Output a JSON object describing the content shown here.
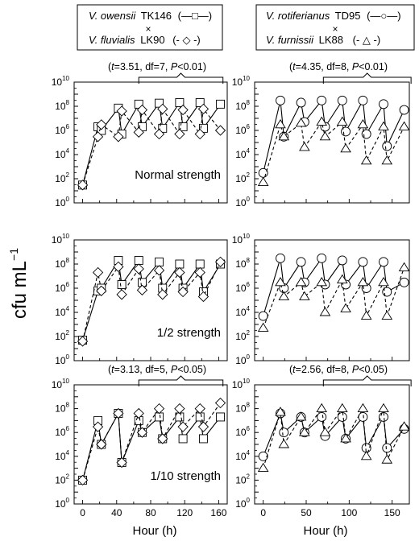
{
  "legend": {
    "left": {
      "a": {
        "species": "V. owensii",
        "strain": "TK146",
        "glyph": "(—□—)"
      },
      "cross": "×",
      "b": {
        "species": "V. fluvialis",
        "strain": "LK90",
        "glyph": "(- ◇ -)"
      }
    },
    "right": {
      "a": {
        "species": "V. rotiferianus",
        "strain": "TD95",
        "glyph": "(—○—)"
      },
      "cross": "×",
      "b": {
        "species": "V. furnissii",
        "strain": "LK88",
        "glyph": "(- △ -)"
      }
    }
  },
  "ylabel": "cfu mL",
  "ylabel_sup": "−1",
  "xlabel": "Hour (h)",
  "panel_labels": [
    "Normal strength",
    "1/2 strength",
    "1/10 strength"
  ],
  "chart_data": [
    {
      "type": "line",
      "row": 0,
      "col": 0,
      "yscale": "log",
      "xlim": [
        -10,
        170
      ],
      "ylim": [
        1,
        10000000000.0
      ],
      "xticks": [
        0,
        40,
        80,
        120,
        160
      ],
      "yticks_exp": [
        0,
        2,
        4,
        6,
        8,
        10
      ],
      "annotation": {
        "text": "(t=3.51, df=7, P<0.01)",
        "t": "3.51",
        "df": "7",
        "p": "<0.01",
        "bracket": [
          66,
          165
        ]
      },
      "panel_label": "Normal strength",
      "series": [
        {
          "name": "V. owensii TK146",
          "marker": "square",
          "line": "solid",
          "x": [
            0,
            18,
            22,
            42,
            46,
            66,
            70,
            90,
            94,
            114,
            118,
            138,
            142,
            162
          ],
          "y": [
            30,
            2000000,
            1000000,
            70000000,
            500000,
            150000000,
            2000000,
            180000000,
            1500000,
            200000000,
            2000000,
            200000000,
            1500000,
            150000000
          ]
        },
        {
          "name": "V. fluvialis LK90",
          "marker": "diamond",
          "line": "dashed",
          "x": [
            0,
            18,
            22,
            42,
            46,
            66,
            70,
            90,
            94,
            114,
            118,
            138,
            142,
            162
          ],
          "y": [
            30,
            300000,
            3000000,
            300000,
            40000000,
            700000,
            50000000,
            500000,
            60000000,
            500000,
            50000000,
            500000,
            60000000,
            1000000
          ]
        }
      ]
    },
    {
      "type": "line",
      "row": 0,
      "col": 1,
      "yscale": "log",
      "xlim": [
        -10,
        170
      ],
      "ylim": [
        1,
        10000000000.0
      ],
      "xticks": [
        0,
        50,
        100,
        150
      ],
      "yticks_exp": [
        0,
        2,
        4,
        6,
        8,
        10
      ],
      "annotation": {
        "text": "(t=4.35, df=8, P<0.01)",
        "t": "4.35",
        "df": "8",
        "p": "<0.01",
        "bracket": [
          70,
          172
        ]
      },
      "series": [
        {
          "name": "V. rotiferianus TD95",
          "marker": "circle",
          "line": "solid",
          "x": [
            0,
            20,
            24,
            44,
            48,
            68,
            72,
            92,
            96,
            116,
            120,
            140,
            144,
            164
          ],
          "y": [
            300,
            300000000,
            300000,
            200000000,
            5000000,
            300000000,
            2000000,
            300000000,
            800000,
            300000000,
            500000,
            150000000,
            50000,
            50000000
          ]
        },
        {
          "name": "V. furnissii LK88",
          "marker": "triangle",
          "line": "dashed",
          "x": [
            0,
            20,
            24,
            44,
            48,
            68,
            72,
            92,
            96,
            116,
            120,
            140,
            144,
            164
          ],
          "y": [
            50,
            3000000,
            300000,
            4000000,
            40000,
            5000000,
            300000,
            5000000,
            30000,
            3000000,
            3000,
            2000000,
            3000,
            2000000
          ]
        }
      ]
    },
    {
      "type": "line",
      "row": 1,
      "col": 0,
      "yscale": "log",
      "xlim": [
        -10,
        170
      ],
      "ylim": [
        1,
        10000000000.0
      ],
      "xticks": [
        0,
        40,
        80,
        120,
        160
      ],
      "yticks_exp": [
        0,
        2,
        4,
        6,
        8,
        10
      ],
      "panel_label": "1/2 strength",
      "series": [
        {
          "name": "V. owensii TK146",
          "marker": "square",
          "line": "solid",
          "x": [
            0,
            18,
            22,
            42,
            46,
            66,
            70,
            90,
            94,
            114,
            118,
            138,
            142,
            162
          ],
          "y": [
            50,
            600000,
            1000000,
            200000000,
            2000000,
            200000000,
            3000000,
            150000000,
            1000000,
            100000000,
            1000000,
            100000000,
            500000,
            100000000
          ]
        },
        {
          "name": "V. fluvialis LK90",
          "marker": "diamond",
          "line": "dashed",
          "x": [
            0,
            18,
            22,
            42,
            46,
            66,
            70,
            90,
            94,
            114,
            118,
            138,
            142,
            162
          ],
          "y": [
            40,
            20000000,
            600000,
            60000000,
            300000,
            40000000,
            700000,
            30000000,
            300000,
            20000000,
            500000,
            20000000,
            200000,
            150000000
          ]
        }
      ]
    },
    {
      "type": "line",
      "row": 1,
      "col": 1,
      "yscale": "log",
      "xlim": [
        -10,
        170
      ],
      "ylim": [
        1,
        10000000000.0
      ],
      "xticks": [
        0,
        50,
        100,
        150
      ],
      "yticks_exp": [
        0,
        2,
        4,
        6,
        8,
        10
      ],
      "series": [
        {
          "name": "V. rotiferianus TD95",
          "marker": "circle",
          "line": "solid",
          "x": [
            0,
            20,
            24,
            44,
            48,
            68,
            72,
            92,
            96,
            116,
            120,
            140,
            144,
            164
          ],
          "y": [
            5000,
            300000000,
            1000000,
            150000000,
            3000000,
            300000000,
            2000000,
            200000000,
            2000000,
            150000000,
            1000000,
            150000000,
            500000,
            3000000
          ]
        },
        {
          "name": "V. furnissii LK88",
          "marker": "triangle",
          "line": "dashed",
          "x": [
            0,
            20,
            24,
            44,
            48,
            68,
            72,
            92,
            96,
            116,
            120,
            140,
            144,
            164
          ],
          "y": [
            500,
            3000000,
            200000,
            3000000,
            200000,
            3000000,
            10000,
            5000000,
            20000,
            3000000,
            5000,
            3000000,
            5000,
            50000000
          ]
        }
      ]
    },
    {
      "type": "line",
      "row": 2,
      "col": 0,
      "yscale": "log",
      "xlim": [
        -10,
        170
      ],
      "ylim": [
        1,
        10000000000.0
      ],
      "xticks": [
        0,
        40,
        80,
        120,
        160
      ],
      "yticks_exp": [
        0,
        2,
        4,
        6,
        8,
        10
      ],
      "annotation": {
        "text": "(t=3.13, df=5, P<0.05)",
        "t": "3.13",
        "df": "5",
        "p": "<0.05",
        "bracket": [
          66,
          165
        ]
      },
      "panel_label": "1/10 strength",
      "series": [
        {
          "name": "V. owensii TK146",
          "marker": "square",
          "line": "solid",
          "x": [
            0,
            18,
            22,
            42,
            46,
            66,
            70,
            90,
            94,
            114,
            118,
            138,
            142,
            162
          ],
          "y": [
            100,
            10000000,
            100000,
            40000000,
            3000,
            10000000,
            1000000,
            20000000,
            300000,
            20000000,
            300000,
            20000000,
            300000,
            20000000
          ]
        },
        {
          "name": "V. fluvialis LK90",
          "marker": "diamond",
          "line": "dashed",
          "x": [
            0,
            18,
            22,
            42,
            46,
            66,
            70,
            90,
            94,
            114,
            118,
            138,
            142,
            162
          ],
          "y": [
            100,
            3000000,
            100000,
            40000000,
            3000,
            40000000,
            1000000,
            100000000,
            300000,
            100000000,
            3000000,
            100000000,
            3000000,
            300000000
          ]
        }
      ]
    },
    {
      "type": "line",
      "row": 2,
      "col": 1,
      "yscale": "log",
      "xlim": [
        -10,
        170
      ],
      "ylim": [
        1,
        10000000000.0
      ],
      "xticks": [
        0,
        50,
        100,
        150
      ],
      "yticks_exp": [
        0,
        2,
        4,
        6,
        8,
        10
      ],
      "annotation": {
        "text": "(t=2.56, df=8, P<0.05)",
        "t": "2.56",
        "df": "8",
        "p": "<0.05",
        "bracket": [
          70,
          172
        ]
      },
      "series": [
        {
          "name": "V. rotiferianus TD95",
          "marker": "circle",
          "line": "solid",
          "x": [
            0,
            20,
            24,
            44,
            48,
            68,
            72,
            92,
            96,
            116,
            120,
            140,
            144,
            164
          ],
          "y": [
            10000,
            40000000,
            1000000,
            20000000,
            1000000,
            20000000,
            500000,
            20000000,
            300000,
            20000000,
            50000,
            20000000,
            50000,
            2000000
          ]
        },
        {
          "name": "V. furnissii LK88",
          "marker": "triangle",
          "line": "dashed",
          "x": [
            0,
            20,
            24,
            44,
            48,
            68,
            72,
            92,
            96,
            116,
            120,
            140,
            144,
            164
          ],
          "y": [
            1000,
            50000000,
            100000,
            20000000,
            1000000,
            100000000,
            1000000,
            100000000,
            300000,
            100000000,
            10000,
            100000000,
            5000,
            3000000
          ]
        }
      ]
    }
  ]
}
